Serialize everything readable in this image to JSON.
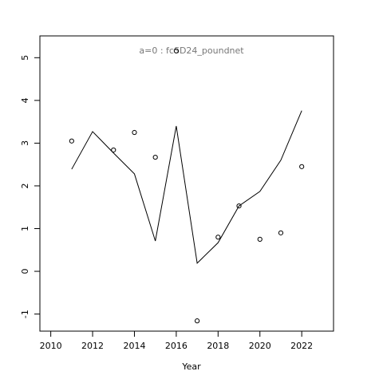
{
  "chart_data": {
    "type": "line",
    "title": "a=0 : fcSD24_poundnet",
    "x_label": "Year",
    "x": [
      2011,
      2012,
      2013,
      2014,
      2015,
      2016,
      2017,
      2018,
      2019,
      2020,
      2021,
      2022
    ],
    "series": [
      {
        "style": "line",
        "color": "#000000",
        "values": [
          2.39,
          3.27,
          2.77,
          2.28,
          0.71,
          3.4,
          0.19,
          0.67,
          1.53,
          1.87,
          2.6,
          3.76
        ]
      },
      {
        "style": "points",
        "color": "#000000",
        "values": [
          3.05,
          null,
          2.84,
          3.25,
          2.67,
          5.16,
          -1.16,
          0.8,
          1.53,
          0.75,
          0.9,
          2.45
        ]
      }
    ],
    "xlim": [
      2009.48,
      2023.52
    ],
    "ylim": [
      -1.4,
      5.51
    ],
    "xticks": [
      2010,
      2012,
      2014,
      2016,
      2018,
      2020,
      2022
    ],
    "yticks": [
      -1,
      0,
      1,
      2,
      3,
      4,
      5
    ],
    "title_color": "#777777"
  }
}
